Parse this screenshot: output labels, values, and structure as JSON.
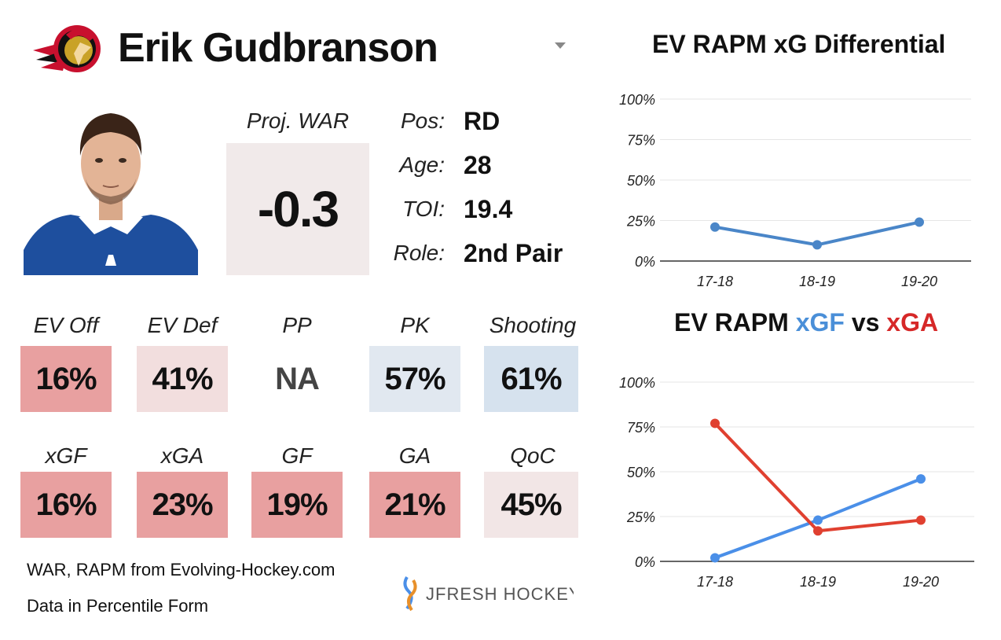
{
  "header": {
    "team_logo_icon": "senators-logo-icon",
    "player_name": "Erik Gudbranson",
    "dropdown_icon": "chevron-down-icon"
  },
  "profile": {
    "war_label": "Proj. WAR",
    "war_value": "-0.3",
    "info": [
      {
        "key": "Pos:",
        "value": "RD"
      },
      {
        "key": "Age:",
        "value": "28"
      },
      {
        "key": "TOI:",
        "value": "19.4"
      },
      {
        "key": "Role:",
        "value": "2nd Pair"
      }
    ]
  },
  "tiles_row1": [
    {
      "label": "EV Off",
      "value": "16%",
      "color": "#e8a0a0"
    },
    {
      "label": "EV Def",
      "value": "41%",
      "color": "#f2dede"
    },
    {
      "label": "PP",
      "value": "NA",
      "color": "#ffffff"
    },
    {
      "label": "PK",
      "value": "57%",
      "color": "#e1e8f0"
    },
    {
      "label": "Shooting",
      "value": "61%",
      "color": "#d6e2ee"
    }
  ],
  "tiles_row2": [
    {
      "label": "xGF",
      "value": "16%",
      "color": "#e8a0a0"
    },
    {
      "label": "xGA",
      "value": "23%",
      "color": "#e8a0a0"
    },
    {
      "label": "GF",
      "value": "19%",
      "color": "#e8a0a0"
    },
    {
      "label": "GA",
      "value": "21%",
      "color": "#e8a0a0"
    },
    {
      "label": "QoC",
      "value": "45%",
      "color": "#f2e6e6"
    }
  ],
  "footer": {
    "source": "WAR, RAPM from  Evolving-Hockey.com",
    "note": "Data in Percentile Form",
    "brand": "JFRESH HOCKEY"
  },
  "chart_titles": {
    "diff_title": "EV RAPM xG Differential",
    "xg_title_a": "EV RAPM ",
    "xg_title_b": "xGF",
    "xg_title_c": " vs ",
    "xg_title_d": "xGA"
  },
  "chart_data": [
    {
      "type": "line",
      "title": "EV RAPM xG Differential",
      "categories": [
        "17-18",
        "18-19",
        "19-20"
      ],
      "ylim": [
        0,
        100
      ],
      "yticks": [
        "0%",
        "25%",
        "50%",
        "75%",
        "100%"
      ],
      "grid": true,
      "series": [
        {
          "name": "xG Differential",
          "values": [
            21,
            10,
            24
          ],
          "color": "#4a86c8"
        }
      ]
    },
    {
      "type": "line",
      "title": "EV RAPM xGF vs xGA",
      "categories": [
        "17-18",
        "18-19",
        "19-20"
      ],
      "ylim": [
        0,
        100
      ],
      "yticks": [
        "0%",
        "25%",
        "50%",
        "75%",
        "100%"
      ],
      "grid": true,
      "series": [
        {
          "name": "xGF",
          "values": [
            2,
            23,
            46
          ],
          "color": "#4a8fe8"
        },
        {
          "name": "xGA",
          "values": [
            77,
            17,
            23
          ],
          "color": "#e04030"
        }
      ]
    }
  ]
}
